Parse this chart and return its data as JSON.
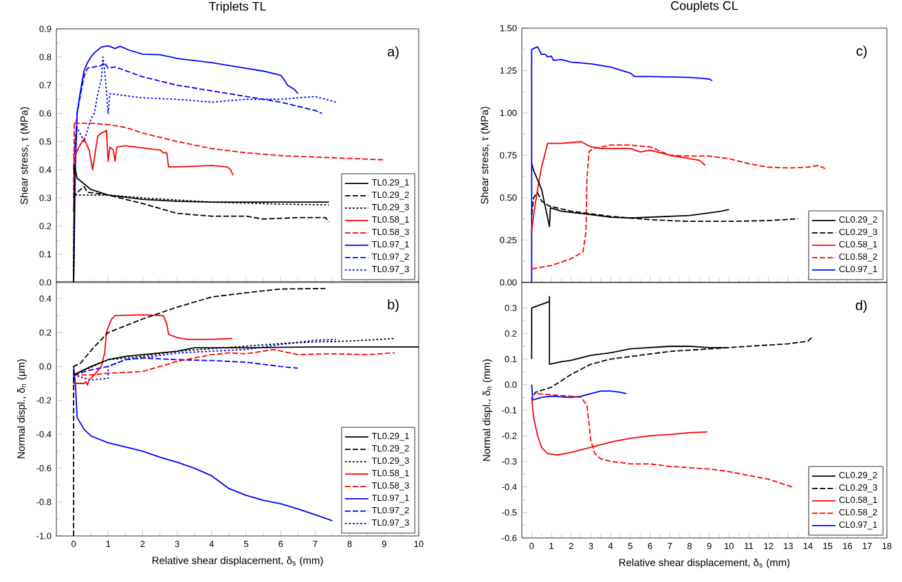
{
  "chart_data": [
    {
      "type": "line",
      "title": "Triplets TL",
      "ylabel": "Shear stress, τ (MPa)",
      "annotations": [
        "a)"
      ],
      "xlim": [
        -0.5,
        10
      ],
      "ylim": [
        0,
        0.9
      ],
      "xticks": [
        0,
        1,
        2,
        3,
        4,
        5,
        6,
        7,
        8,
        9,
        10
      ],
      "yticks": [
        {
          "value": 0,
          "label": "0.0"
        },
        {
          "value": 0.1,
          "label": "0.1"
        },
        {
          "value": 0.2,
          "label": "0.2"
        },
        {
          "value": 0.3,
          "label": "0.3"
        },
        {
          "value": 0.4,
          "label": "0.4"
        },
        {
          "value": 0.5,
          "label": "0.5"
        },
        {
          "value": 0.6,
          "label": "0.6"
        },
        {
          "value": 0.7,
          "label": "0.7"
        },
        {
          "value": 0.8,
          "label": "0.8"
        },
        {
          "value": 0.9,
          "label": "0.9"
        }
      ],
      "tick_labels": "y",
      "legend": "bottom right",
      "grid": false,
      "series": [
        {
          "name": "TL0.29_1",
          "color": "#000000",
          "line_style": "solid",
          "x": [
            0,
            0.02,
            0.1,
            0.5,
            1,
            2,
            3,
            4,
            6,
            7.4
          ],
          "values": [
            0,
            0.42,
            0.37,
            0.33,
            0.31,
            0.295,
            0.288,
            0.285,
            0.285,
            0.285
          ]
        },
        {
          "name": "TL0.29_2",
          "color": "#000000",
          "line_style": "dashed",
          "x": [
            0,
            0.02,
            0.3,
            0.4,
            1,
            2,
            3,
            4,
            5,
            5.5,
            6.5,
            7.3,
            7.4
          ],
          "values": [
            0,
            0.31,
            0.34,
            0.32,
            0.31,
            0.28,
            0.245,
            0.235,
            0.235,
            0.225,
            0.23,
            0.23,
            0.215
          ]
        },
        {
          "name": "TL0.29_3",
          "color": "#000000",
          "line_style": "dotted",
          "x": [
            0,
            0.02,
            1,
            2,
            4,
            6,
            7.4
          ],
          "values": [
            0,
            0.31,
            0.31,
            0.3,
            0.285,
            0.278,
            0.275
          ]
        },
        {
          "name": "TL0.58_1",
          "color": "#ff0000",
          "line_style": "solid",
          "x": [
            0,
            0.05,
            0.15,
            0.25,
            0.3,
            0.45,
            0.55,
            0.65,
            0.7,
            0.8,
            0.9,
            0.95,
            1.0,
            1.05,
            1.15,
            1.2,
            1.25,
            1.5,
            2.5,
            2.6,
            2.7,
            2.75,
            3,
            4,
            4.45,
            4.55,
            4.62
          ],
          "values": [
            0.25,
            0.45,
            0.48,
            0.5,
            0.51,
            0.47,
            0.4,
            0.48,
            0.52,
            0.53,
            0.535,
            0.54,
            0.43,
            0.48,
            0.47,
            0.43,
            0.48,
            0.485,
            0.47,
            0.46,
            0.46,
            0.41,
            0.41,
            0.415,
            0.41,
            0.4,
            0.38
          ]
        },
        {
          "name": "TL0.58_3",
          "color": "#ff0000",
          "line_style": "dashed",
          "x": [
            0,
            0.02,
            0.05,
            0.5,
            1,
            1.5,
            2,
            3,
            4,
            5,
            6,
            8,
            9.0
          ],
          "values": [
            0.3,
            0.57,
            0.565,
            0.565,
            0.56,
            0.55,
            0.53,
            0.5,
            0.475,
            0.46,
            0.45,
            0.44,
            0.435
          ]
        },
        {
          "name": "TL0.97_1",
          "color": "#0000ff",
          "line_style": "solid",
          "x": [
            0,
            0.05,
            0.1,
            0.2,
            0.3,
            0.4,
            0.5,
            0.6,
            0.8,
            1,
            1.2,
            1.35,
            1.6,
            2,
            2.5,
            3,
            4,
            4.5,
            5,
            5.5,
            6,
            6.1,
            6.2,
            6.4,
            6.5
          ],
          "values": [
            0,
            0.4,
            0.6,
            0.68,
            0.75,
            0.78,
            0.8,
            0.815,
            0.835,
            0.84,
            0.83,
            0.838,
            0.825,
            0.81,
            0.808,
            0.795,
            0.78,
            0.77,
            0.76,
            0.75,
            0.735,
            0.72,
            0.7,
            0.685,
            0.67
          ]
        },
        {
          "name": "TL0.97_2",
          "color": "#0000ff",
          "line_style": "dashed",
          "x": [
            0,
            0.1,
            0.25,
            0.3,
            0.4,
            0.8,
            0.9,
            1,
            1.2,
            2,
            3,
            4,
            5,
            6,
            7,
            7.2
          ],
          "values": [
            0.4,
            0.6,
            0.7,
            0.73,
            0.76,
            0.77,
            0.78,
            0.76,
            0.765,
            0.73,
            0.7,
            0.68,
            0.66,
            0.64,
            0.61,
            0.6
          ]
        },
        {
          "name": "TL0.97_3",
          "color": "#0000ff",
          "line_style": "dotted",
          "x": [
            0,
            0.1,
            0.3,
            0.5,
            0.6,
            0.7,
            0.8,
            0.85,
            0.9,
            0.95,
            1.0,
            1.05,
            2,
            3,
            4,
            5,
            6,
            7,
            7.6
          ],
          "values": [
            0.45,
            0.55,
            0.5,
            0.58,
            0.6,
            0.67,
            0.72,
            0.8,
            0.75,
            0.68,
            0.6,
            0.67,
            0.655,
            0.65,
            0.64,
            0.65,
            0.65,
            0.66,
            0.64
          ]
        }
      ]
    },
    {
      "type": "line",
      "xlabel": "Relative shear displacement, δ$_{s}$ (mm)",
      "ylabel": "Normal displ., δ$_{n}$ (µm)",
      "annotations": [
        "b)"
      ],
      "xlim": [
        -0.5,
        10
      ],
      "ylim": [
        -1.0,
        0.5
      ],
      "xticks": [
        0,
        1,
        2,
        3,
        4,
        5,
        6,
        7,
        8,
        9,
        10
      ],
      "yticks": [
        {
          "value": -1.0,
          "label": "-1.0"
        },
        {
          "value": -0.8,
          "label": "-0.8"
        },
        {
          "value": -0.6,
          "label": "-0.6"
        },
        {
          "value": -0.4,
          "label": "-0.4"
        },
        {
          "value": -0.2,
          "label": "-0.2"
        },
        {
          "value": 0,
          "label": "0.0"
        },
        {
          "value": 0.2,
          "label": "0.2"
        },
        {
          "value": 0.4,
          "label": "0.4"
        }
      ],
      "legend": "bottom right",
      "grid": false,
      "series": [
        {
          "name": "TL0.29_1",
          "color": "#000000",
          "line_style": "solid",
          "x": [
            0,
            0.5,
            1,
            1.5,
            2,
            3,
            3.5,
            5,
            7,
            10
          ],
          "values": [
            -0.05,
            0.0,
            0.04,
            0.06,
            0.07,
            0.09,
            0.11,
            0.11,
            0.115,
            0.115
          ]
        },
        {
          "name": "TL0.29_2",
          "color": "#000000",
          "line_style": "dashed",
          "x": [
            0,
            0,
            0.2,
            0.57,
            1,
            2,
            3,
            4,
            5,
            6,
            7.3
          ],
          "values": [
            -1.0,
            0.0,
            0.02,
            0.11,
            0.2,
            0.28,
            0.35,
            0.41,
            0.435,
            0.457,
            0.46
          ]
        },
        {
          "name": "TL0.29_3",
          "color": "#000000",
          "line_style": "dotted",
          "x": [
            0,
            1,
            2,
            3,
            4,
            5,
            6,
            7,
            8,
            9.3
          ],
          "values": [
            -0.05,
            0.04,
            0.06,
            0.09,
            0.105,
            0.12,
            0.135,
            0.145,
            0.15,
            0.165
          ]
        },
        {
          "name": "TL0.58_1",
          "color": "#ff0000",
          "line_style": "solid",
          "x": [
            0,
            0,
            0.3,
            0.35,
            0.4,
            0.45,
            0.6,
            0.8,
            0.9,
            0.95,
            1.0,
            1.1,
            1.2,
            2,
            2.6,
            2.7,
            2.75,
            3,
            3.3,
            4,
            4.6
          ],
          "values": [
            -0.05,
            -0.1,
            -0.1,
            -0.09,
            -0.11,
            -0.08,
            -0.05,
            0.0,
            0.08,
            0.2,
            0.23,
            0.28,
            0.3,
            0.305,
            0.3,
            0.25,
            0.19,
            0.17,
            0.16,
            0.16,
            0.165
          ]
        },
        {
          "name": "TL0.58_3",
          "color": "#ff0000",
          "line_style": "dashed",
          "x": [
            0,
            0.5,
            1,
            2,
            3,
            4,
            4.5,
            5,
            5.8,
            6.5,
            7.5,
            8.5,
            9.3
          ],
          "values": [
            -0.05,
            -0.05,
            -0.04,
            -0.03,
            0.03,
            0.07,
            0.08,
            0.075,
            0.1,
            0.07,
            0.075,
            0.07,
            0.08
          ]
        },
        {
          "name": "TL0.97_1",
          "color": "#0000ff",
          "line_style": "solid",
          "x": [
            0,
            0.05,
            0.1,
            0.3,
            0.5,
            1,
            1.5,
            2,
            2.5,
            3,
            3.5,
            4,
            4.5,
            5,
            5.5,
            6,
            6.5,
            7,
            7.5
          ],
          "values": [
            0,
            -0.1,
            -0.3,
            -0.37,
            -0.41,
            -0.45,
            -0.475,
            -0.5,
            -0.535,
            -0.565,
            -0.6,
            -0.645,
            -0.72,
            -0.76,
            -0.79,
            -0.81,
            -0.84,
            -0.875,
            -0.91
          ]
        },
        {
          "name": "TL0.97_2",
          "color": "#0000ff",
          "line_style": "dashed",
          "x": [
            0,
            0.5,
            1,
            1.5,
            2,
            3,
            4,
            5,
            6,
            6.5
          ],
          "values": [
            -0.05,
            -0.02,
            0.0,
            0.04,
            0.05,
            0.04,
            0.035,
            0.025,
            0.0,
            -0.01
          ]
        },
        {
          "name": "TL0.97_3",
          "color": "#0000ff",
          "line_style": "dotted",
          "x": [
            0,
            0.5,
            1,
            1,
            1.5,
            2,
            3,
            4,
            5,
            6,
            7,
            7.6
          ],
          "values": [
            -0.05,
            -0.08,
            -0.07,
            0.0,
            0.04,
            0.05,
            0.08,
            0.09,
            0.1,
            0.13,
            0.155,
            0.16
          ]
        }
      ]
    },
    {
      "type": "line",
      "title": "Couplets CL",
      "ylabel": "Shear stress, τ (MPa)",
      "annotations": [
        "c)"
      ],
      "xlim": [
        -0.5,
        18
      ],
      "ylim": [
        0,
        1.5
      ],
      "xticks": [
        0,
        1,
        2,
        3,
        4,
        5,
        6,
        7,
        8,
        9,
        10,
        11,
        12,
        13,
        14,
        15,
        16,
        17,
        18
      ],
      "yticks": [
        {
          "value": 0,
          "label": "0.00"
        },
        {
          "value": 0.25,
          "label": "0.25"
        },
        {
          "value": 0.5,
          "label": "0.50"
        },
        {
          "value": 0.75,
          "label": "0.75"
        },
        {
          "value": 1.0,
          "label": "1.00"
        },
        {
          "value": 1.25,
          "label": "1.25"
        },
        {
          "value": 1.5,
          "label": "1.50"
        }
      ],
      "tick_labels": "y",
      "legend": "bottom right",
      "grid": false,
      "series": [
        {
          "name": "CL0.29_2",
          "color": "#000000",
          "line_style": "solid",
          "x": [
            0,
            0.1,
            0.5,
            0.9,
            0.95,
            1.5,
            3,
            4,
            5,
            6,
            7,
            8,
            9,
            9.6,
            10
          ],
          "values": [
            0.7,
            0.66,
            0.55,
            0.33,
            0.44,
            0.42,
            0.4,
            0.385,
            0.38,
            0.385,
            0.39,
            0.395,
            0.41,
            0.42,
            0.43
          ]
        },
        {
          "name": "CL0.29_3",
          "color": "#000000",
          "line_style": "dashed",
          "x": [
            0,
            0.1,
            0.3,
            0.5,
            0.9,
            2,
            4,
            6,
            8,
            10,
            12,
            13.5
          ],
          "values": [
            0.4,
            0.5,
            0.53,
            0.48,
            0.45,
            0.42,
            0.39,
            0.37,
            0.36,
            0.36,
            0.365,
            0.375
          ]
        },
        {
          "name": "CL0.58_1",
          "color": "#ff0000",
          "line_style": "solid",
          "x": [
            0,
            0.1,
            0.3,
            0.5,
            0.7,
            0.8,
            1.5,
            2,
            2.5,
            3,
            3.5,
            4,
            5,
            5.5,
            6,
            7,
            8,
            8.5,
            8.8
          ],
          "values": [
            0.3,
            0.4,
            0.55,
            0.68,
            0.77,
            0.82,
            0.82,
            0.825,
            0.83,
            0.8,
            0.79,
            0.79,
            0.79,
            0.77,
            0.78,
            0.75,
            0.73,
            0.72,
            0.69
          ]
        },
        {
          "name": "CL0.58_2",
          "color": "#ff0000",
          "line_style": "dashed",
          "x": [
            0,
            1,
            2,
            2.6,
            2.75,
            2.8,
            2.9,
            3.1,
            4,
            5,
            6,
            7,
            8,
            9,
            10,
            11,
            12,
            13,
            14,
            14.5,
            14.9
          ],
          "values": [
            0.08,
            0.1,
            0.14,
            0.18,
            0.3,
            0.6,
            0.77,
            0.79,
            0.81,
            0.81,
            0.8,
            0.75,
            0.745,
            0.745,
            0.73,
            0.7,
            0.68,
            0.675,
            0.68,
            0.69,
            0.67
          ]
        },
        {
          "name": "CL0.97_1",
          "color": "#0000ff",
          "line_style": "solid",
          "x": [
            0,
            0,
            0.2,
            0.3,
            0.5,
            0.7,
            0.8,
            1,
            1.1,
            1.5,
            2,
            3,
            4,
            5,
            5.2,
            6,
            8,
            9,
            9.15
          ],
          "values": [
            0,
            1.375,
            1.385,
            1.39,
            1.345,
            1.345,
            1.33,
            1.335,
            1.31,
            1.315,
            1.3,
            1.29,
            1.27,
            1.235,
            1.215,
            1.215,
            1.21,
            1.2,
            1.19
          ]
        }
      ]
    },
    {
      "type": "line",
      "xlabel": "Relative shear displacement, δ$_{s}$ (mm)",
      "ylabel": "Normal displ., δ$_{n}$ (mm)",
      "annotations": [
        "d)"
      ],
      "xlim": [
        -0.5,
        18
      ],
      "ylim": [
        -0.6,
        0.4
      ],
      "xticks": [
        0,
        1,
        2,
        3,
        4,
        5,
        6,
        7,
        8,
        9,
        10,
        11,
        12,
        13,
        14,
        15,
        16,
        17,
        18
      ],
      "yticks": [
        {
          "value": -0.6,
          "label": "-0.6"
        },
        {
          "value": -0.5,
          "label": "-0.5"
        },
        {
          "value": -0.4,
          "label": "-0.4"
        },
        {
          "value": -0.3,
          "label": "-0.3"
        },
        {
          "value": -0.2,
          "label": "-0.2"
        },
        {
          "value": -0.1,
          "label": "-0.1"
        },
        {
          "value": 0,
          "label": "0.0"
        },
        {
          "value": 0.1,
          "label": "0.1"
        },
        {
          "value": 0.2,
          "label": "0.2"
        },
        {
          "value": 0.3,
          "label": "0.3"
        }
      ],
      "legend": "bottom right",
      "grid": false,
      "series": [
        {
          "name": "CL0.29_2",
          "color": "#000000",
          "line_style": "solid",
          "x": [
            0,
            0,
            0.9,
            0.9,
            0.9,
            1.2,
            1.5,
            2,
            3,
            4,
            5,
            6,
            7,
            8,
            9,
            10
          ],
          "values": [
            0.1,
            0.3,
            0.325,
            0.345,
            0.08,
            0.085,
            0.09,
            0.095,
            0.115,
            0.125,
            0.14,
            0.145,
            0.15,
            0.15,
            0.145,
            0.145
          ]
        },
        {
          "name": "CL0.29_3",
          "color": "#000000",
          "line_style": "dashed",
          "x": [
            0.1,
            0.2,
            1,
            2,
            3,
            4,
            5,
            6,
            7,
            8,
            9,
            10,
            12,
            13,
            14,
            14.2
          ],
          "values": [
            -0.04,
            -0.03,
            -0.01,
            0.04,
            0.08,
            0.1,
            0.11,
            0.12,
            0.13,
            0.135,
            0.14,
            0.145,
            0.155,
            0.16,
            0.17,
            0.185
          ]
        },
        {
          "name": "CL0.58_1",
          "color": "#ff0000",
          "line_style": "solid",
          "x": [
            0,
            0.1,
            0.3,
            0.5,
            0.8,
            1.3,
            2,
            3,
            4,
            5,
            6,
            7,
            8,
            8.9
          ],
          "values": [
            -0.05,
            -0.13,
            -0.2,
            -0.245,
            -0.27,
            -0.275,
            -0.265,
            -0.245,
            -0.225,
            -0.21,
            -0.2,
            -0.195,
            -0.188,
            -0.185
          ]
        },
        {
          "name": "CL0.58_2",
          "color": "#ff0000",
          "line_style": "dashed",
          "x": [
            0.3,
            1,
            2,
            2.5,
            2.8,
            2.9,
            3.0,
            3.2,
            3.5,
            4,
            5,
            6,
            7,
            8,
            9,
            10,
            12,
            13.2
          ],
          "values": [
            -0.035,
            -0.04,
            -0.045,
            -0.05,
            -0.08,
            -0.15,
            -0.22,
            -0.27,
            -0.29,
            -0.3,
            -0.31,
            -0.31,
            -0.32,
            -0.325,
            -0.33,
            -0.34,
            -0.37,
            -0.4
          ]
        },
        {
          "name": "CL0.97_1",
          "color": "#0000ff",
          "line_style": "solid",
          "x": [
            0,
            0.05,
            0.5,
            1,
            2,
            2.5,
            3,
            3.5,
            4,
            4.5,
            4.8
          ],
          "values": [
            0,
            -0.06,
            -0.05,
            -0.045,
            -0.05,
            -0.045,
            -0.035,
            -0.025,
            -0.025,
            -0.03,
            -0.035
          ]
        }
      ]
    }
  ]
}
